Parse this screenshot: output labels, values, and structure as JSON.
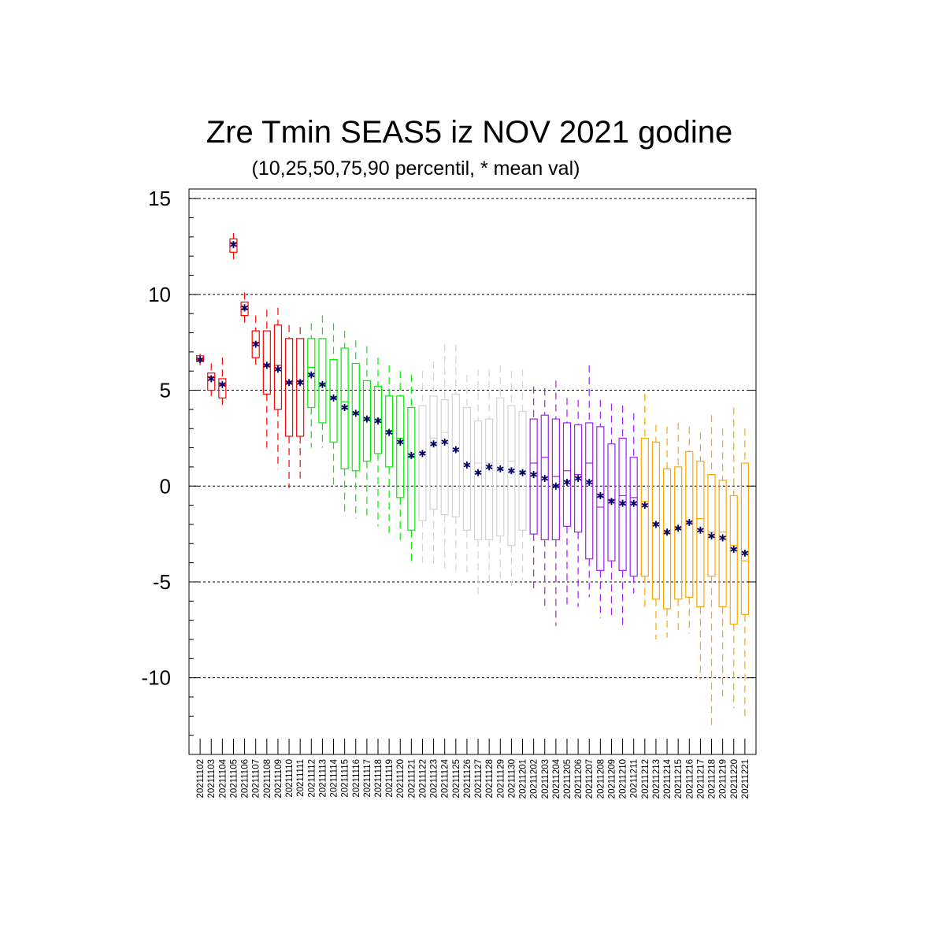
{
  "chart_data": {
    "type": "box",
    "title": "Zre Tmin SEAS5 iz NOV 2021 godine",
    "subtitle": "(10,25,50,75,90 percentil, * mean val)",
    "ylim": [
      -14,
      15.5
    ],
    "yticks": [
      15,
      10,
      5,
      0,
      -5,
      -10
    ],
    "ytick_labels": [
      "15",
      "10",
      "5",
      "0",
      "-5",
      "-10"
    ],
    "grid": "horizontal dashed at major ticks",
    "mean_marker_color": "#000066",
    "group_colors": [
      "#ff0000",
      "#00ee00",
      "#d3d3d3",
      "#a020f0",
      "#ffa500"
    ],
    "categories": [
      "20211102",
      "20211103",
      "20211104",
      "20211105",
      "20211106",
      "20211107",
      "20211108",
      "20211109",
      "20211110",
      "20211111",
      "20211112",
      "20211113",
      "20211114",
      "20211115",
      "20211116",
      "20211117",
      "20211118",
      "20211119",
      "20211120",
      "20211121",
      "20211122",
      "20211123",
      "20211124",
      "20211125",
      "20211126",
      "20211127",
      "20211128",
      "20211129",
      "20211130",
      "20211201",
      "20211202",
      "20211203",
      "20211204",
      "20211205",
      "20211206",
      "20211207",
      "20211208",
      "20211209",
      "20211210",
      "20211211",
      "20211212",
      "20211213",
      "20211214",
      "20211215",
      "20211216",
      "20211217",
      "20211218",
      "20211219",
      "20211220",
      "20211221"
    ],
    "group": [
      0,
      0,
      0,
      0,
      0,
      0,
      0,
      0,
      0,
      0,
      1,
      1,
      1,
      1,
      1,
      1,
      1,
      1,
      1,
      1,
      2,
      2,
      2,
      2,
      2,
      2,
      2,
      2,
      2,
      2,
      3,
      3,
      3,
      3,
      3,
      3,
      3,
      3,
      3,
      3,
      4,
      4,
      4,
      4,
      4,
      4,
      4,
      4,
      4,
      4
    ],
    "p10": [
      6.3,
      4.7,
      4.0,
      11.6,
      8.5,
      6.2,
      2.0,
      0.9,
      -0.1,
      0.4,
      2.0,
      2.0,
      0.0,
      -1.5,
      -1.7,
      -1.7,
      -2.1,
      -2.5,
      -3.0,
      -4.1,
      -4.1,
      -4.3,
      -4.3,
      -4.4,
      -4.6,
      -5.7,
      -5.2,
      -4.9,
      -5.2,
      -4.9,
      -5.5,
      -6.5,
      -7.3,
      -6.2,
      -6.3,
      -5.8,
      -6.9,
      -6.8,
      -7.3,
      -5.6,
      -6.3,
      -8.0,
      -7.9,
      -7.7,
      -7.7,
      -10.1,
      -12.5,
      -11.1,
      -11.6,
      -12.2
    ],
    "p25": [
      6.5,
      5.0,
      4.6,
      12.2,
      8.9,
      6.7,
      4.8,
      4.0,
      2.6,
      2.6,
      4.1,
      3.3,
      2.3,
      0.9,
      0.8,
      1.3,
      1.7,
      1.0,
      -0.6,
      -2.3,
      -1.8,
      -1.2,
      -1.5,
      -1.6,
      -2.3,
      -2.8,
      -2.8,
      -2.6,
      -3.1,
      -2.3,
      -2.5,
      -2.8,
      -2.8,
      -2.1,
      -2.4,
      -3.8,
      -4.4,
      -3.9,
      -4.4,
      -4.7,
      -4.7,
      -5.9,
      -6.4,
      -5.9,
      -5.8,
      -6.3,
      -4.7,
      -6.3,
      -7.2,
      -6.7
    ],
    "p50": [
      6.6,
      5.7,
      5.3,
      12.7,
      9.2,
      7.5,
      6.3,
      6.3,
      5.4,
      5.5,
      6.2,
      5.3,
      4.6,
      4.4,
      3.8,
      3.5,
      3.5,
      2.9,
      2.5,
      1.5,
      1.8,
      2.5,
      2.8,
      1.8,
      1.2,
      1.2,
      1.2,
      0.9,
      1.3,
      0.8,
      1.2,
      1.5,
      0.5,
      0.8,
      0.6,
      1.2,
      -1.1,
      -0.7,
      -0.5,
      -0.6,
      -0.8,
      -1.9,
      -2.5,
      -2.2,
      -1.9,
      -1.7,
      -2.4,
      -2.4,
      -3.1,
      -3.9
    ],
    "p75": [
      6.8,
      5.9,
      5.6,
      12.9,
      9.6,
      8.1,
      8.1,
      8.4,
      7.7,
      7.7,
      7.7,
      7.7,
      6.6,
      7.2,
      6.4,
      5.5,
      5.2,
      4.7,
      4.7,
      4.1,
      4.2,
      4.7,
      4.5,
      4.8,
      4.1,
      3.4,
      3.5,
      4.6,
      4.2,
      3.9,
      3.5,
      3.7,
      3.5,
      3.3,
      3.2,
      3.3,
      3.1,
      2.2,
      2.5,
      1.5,
      2.5,
      2.3,
      0.9,
      1.0,
      1.8,
      1.3,
      0.6,
      0.3,
      -0.5,
      1.2
    ],
    "p90": [
      6.9,
      6.4,
      6.7,
      13.2,
      10.1,
      8.9,
      9.2,
      9.3,
      8.4,
      8.3,
      8.5,
      8.9,
      8.5,
      8.1,
      7.6,
      7.3,
      6.7,
      6.3,
      6.0,
      5.8,
      6.0,
      6.5,
      7.4,
      7.4,
      5.8,
      6.1,
      6.1,
      6.3,
      6.0,
      6.1,
      5.2,
      5.1,
      5.5,
      4.6,
      4.5,
      6.3,
      4.5,
      4.3,
      4.2,
      3.8,
      4.8,
      3.2,
      3.1,
      3.3,
      3.1,
      2.8,
      3.7,
      3.0,
      4.1,
      3.0
    ],
    "mean": [
      6.6,
      5.6,
      5.3,
      12.6,
      9.3,
      7.4,
      6.3,
      6.1,
      5.4,
      5.4,
      5.8,
      5.3,
      4.6,
      4.1,
      3.8,
      3.5,
      3.4,
      2.8,
      2.3,
      1.6,
      1.7,
      2.2,
      2.3,
      1.9,
      1.1,
      0.7,
      1.0,
      0.9,
      0.8,
      0.7,
      0.6,
      0.4,
      0.0,
      0.2,
      0.4,
      0.2,
      -0.5,
      -0.8,
      -0.9,
      -0.9,
      -1.0,
      -2.0,
      -2.4,
      -2.2,
      -1.9,
      -2.3,
      -2.6,
      -2.7,
      -3.3,
      -3.5
    ]
  }
}
